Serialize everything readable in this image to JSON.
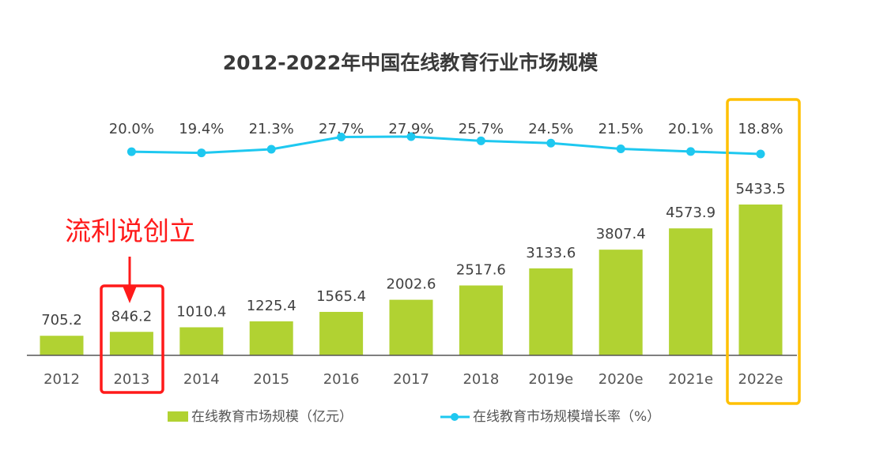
{
  "chart_data": {
    "type": "bar+line",
    "title": "2012-2022年中国在线教育行业市场规模",
    "categories": [
      "2012",
      "2013",
      "2014",
      "2015",
      "2016",
      "2017",
      "2018",
      "2019e",
      "2020e",
      "2021e",
      "2022e"
    ],
    "series": [
      {
        "name": "在线教育市场规模（亿元）",
        "type": "bar",
        "values": [
          705.2,
          846.2,
          1010.4,
          1225.4,
          1565.4,
          2002.6,
          2517.6,
          3133.6,
          3807.4,
          4573.9,
          5433.5
        ],
        "labels": [
          "705.2",
          "846.2",
          "1010.4",
          "1225.4",
          "1565.4",
          "2002.6",
          "2517.6",
          "3133.6",
          "3807.4",
          "4573.9",
          "5433.5"
        ]
      },
      {
        "name": "在线教育市场规模增长率（%）",
        "type": "line",
        "x": [
          "2013",
          "2014",
          "2015",
          "2016",
          "2017",
          "2018",
          "2019e",
          "2020e",
          "2021e",
          "2022e"
        ],
        "values": [
          20.0,
          19.4,
          21.3,
          27.7,
          27.9,
          25.7,
          24.5,
          21.5,
          20.1,
          18.8
        ],
        "labels": [
          "20.0%",
          "19.4%",
          "21.3%",
          "27.7%",
          "27.9%",
          "25.7%",
          "24.5%",
          "21.5%",
          "20.1%",
          "18.8%"
        ]
      }
    ],
    "legend": {
      "position": "bottom",
      "bar_label": "在线教育市场规模（亿元）",
      "line_label": "在线教育市场规模增长率（%）"
    },
    "annotations": {
      "highlight_red_text": "流利说创立",
      "highlight_red_category": "2013",
      "highlight_orange_category": "2022e"
    },
    "grid": false
  },
  "colors": {
    "bar": "#b1d232",
    "line": "#1ec8f0",
    "red": "#ff1a1a",
    "orange": "#ffc000",
    "text": "#404040"
  }
}
